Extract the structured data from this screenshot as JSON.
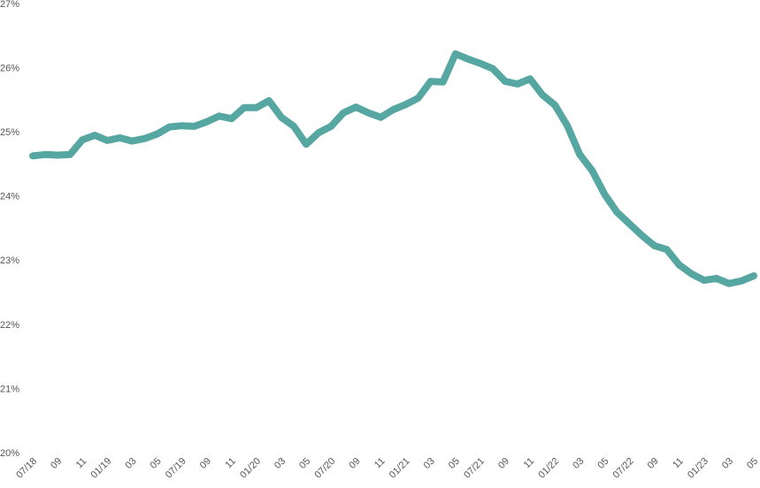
{
  "chart_data": {
    "type": "line",
    "categories": [
      "07/18",
      null,
      "09",
      null,
      "11",
      null,
      "01/19",
      null,
      "03",
      null,
      "05",
      null,
      "07/19",
      null,
      "09",
      null,
      "11",
      null,
      "01/20",
      null,
      "03",
      null,
      "05",
      null,
      "07/20",
      null,
      "09",
      null,
      "11",
      null,
      "01/21",
      null,
      "03",
      null,
      "05",
      null,
      "07/21",
      null,
      "09",
      null,
      "11",
      null,
      "01/22",
      null,
      "03",
      null,
      "05",
      null,
      "07/22",
      null,
      "09",
      null,
      "11",
      null,
      "01/23",
      null,
      "03",
      null,
      "05"
    ],
    "series": [
      {
        "color": "#56a6a2",
        "values": [
          24.64,
          24.66,
          24.65,
          24.66,
          24.89,
          24.96,
          24.88,
          24.92,
          24.87,
          24.91,
          24.98,
          25.09,
          25.11,
          25.1,
          25.17,
          25.26,
          25.22,
          25.39,
          25.39,
          25.5,
          25.24,
          25.1,
          24.82,
          25.0,
          25.1,
          25.31,
          25.4,
          25.31,
          25.24,
          25.36,
          25.44,
          25.54,
          25.8,
          25.79,
          26.23,
          26.15,
          26.08,
          26.0,
          25.8,
          25.76,
          25.84,
          25.59,
          25.43,
          25.11,
          24.66,
          24.41,
          24.04,
          23.76,
          23.58,
          23.4,
          23.24,
          23.18,
          22.94,
          22.8,
          22.7,
          22.73,
          22.65,
          22.69,
          22.77
        ]
      }
    ],
    "ylim": [
      20,
      27
    ],
    "yticks": [
      {
        "value": 20,
        "label": "20%"
      },
      {
        "value": 21,
        "label": "21%"
      },
      {
        "value": 22,
        "label": "22%"
      },
      {
        "value": 23,
        "label": "23%"
      },
      {
        "value": 24,
        "label": "24%"
      },
      {
        "value": 25,
        "label": "25%"
      },
      {
        "value": 26,
        "label": "26%"
      },
      {
        "value": 27,
        "label": "27%"
      }
    ],
    "grid": false
  }
}
